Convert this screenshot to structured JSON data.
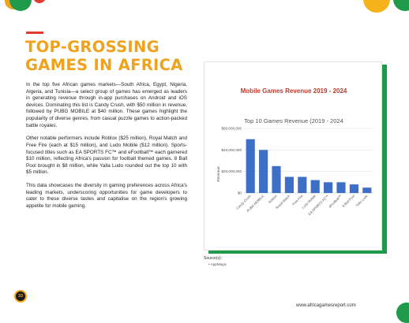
{
  "page": {
    "title_line1": "TOP-GROSSING",
    "title_line2": "GAMES IN AFRICA",
    "paragraphs": [
      "In the top five African games markets—South Africa, Egypt, Nigeria, Algeria, and Tunisia—a select group of games has emerged as leaders in generating revenue through in-app purchases on Android and iOS devices. Dominating this list is Candy Crush, with $50 million in revenue, followed by PUBG MOBILE at $40 million. These games highlight the popularity of diverse genres, from casual puzzle games to action-packed battle royales.",
      "Other notable performers include Roblox ($25 million), Royal Match and Free Fire (each at $15 million), and Ludo Mobile ($12 million). Sports-focused titles such as EA SPORTS FC™ and eFootball™ each garnered $10 million, reflecting Africa's passion for football themed games. 8 Ball Pool brought in $8 million, while Yalla Ludo rounded out the top 10 with $5 million.",
      "This data showcases the diversity in gaming preferences across Africa's leading markets, underscoring opportunities for game developers to cater to these diverse tastes and capitalise on the region's growing appetite for mobile gaming."
    ],
    "source_label": "Source(s):",
    "source_item": "• AppMagic",
    "page_number": "33",
    "website": "www.africagamesreport.com",
    "colors": {
      "accent_orange": "#f0a21d",
      "accent_green": "#1e9a4a",
      "accent_red": "#e23b2e",
      "bar_blue": "#3d6fc6"
    }
  },
  "chart_data": {
    "type": "bar",
    "card_title": "Mobile Games Revenue 2019 - 2024",
    "title": "Top 10 Games Revenue (2019 - 2024",
    "ylabel": "Revenue",
    "xlabel": "",
    "categories": [
      "Candy Crush",
      "PUBG MOBILE",
      "Roblox",
      "Royal Match",
      "Free Fire",
      "Ludo Mobile",
      "EA SPORTS FC™",
      "eFootball™",
      "8 Ball Pool",
      "Yalla Ludo"
    ],
    "values": [
      50000000,
      40000000,
      25000000,
      15000000,
      15000000,
      12000000,
      10000000,
      10000000,
      8000000,
      5000000
    ],
    "ylim": [
      0,
      60000000
    ],
    "yticks": [
      0,
      20000000,
      40000000,
      60000000
    ],
    "ytick_labels": [
      "$0",
      "$20,000,000",
      "$40,000,000",
      "$60,000,000"
    ],
    "grid": true,
    "legend": "none"
  }
}
